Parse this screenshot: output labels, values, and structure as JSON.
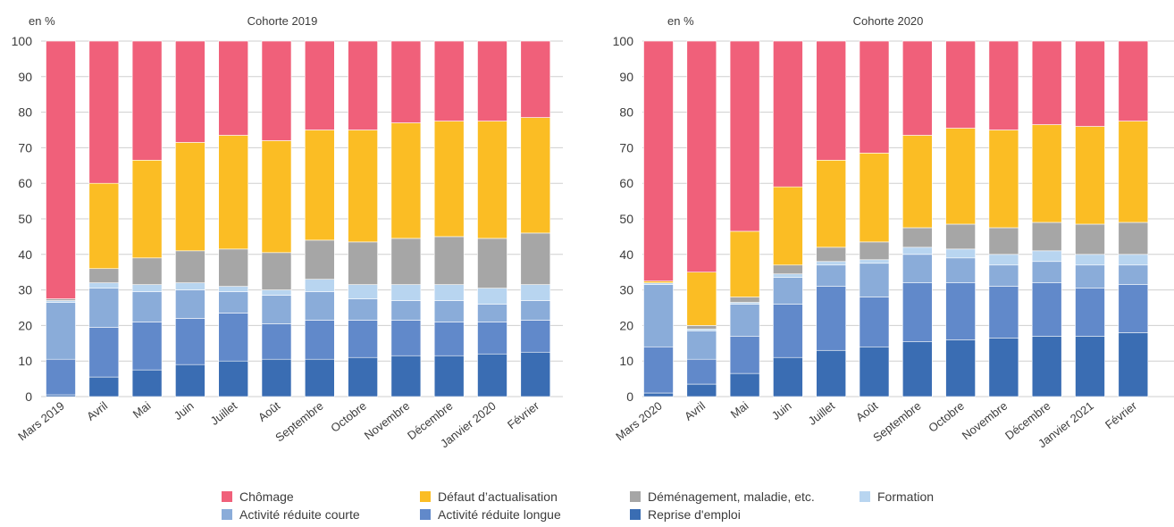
{
  "colors": {
    "chomage": "#f0607a",
    "defaut": "#fbbd24",
    "demenagement": "#a6a6a6",
    "formation": "#b8d5f0",
    "arc": "#8aacd9",
    "arl": "#6189ca",
    "reprise": "#3a6db3",
    "grid": "#cfcfcf"
  },
  "legend": {
    "row1": [
      {
        "key": "chomage",
        "label": "Chômage"
      },
      {
        "key": "defaut",
        "label": "Défaut d’actualisation"
      },
      {
        "key": "demenagement",
        "label": "Déménagement, maladie, etc."
      },
      {
        "key": "formation",
        "label": "Formation"
      }
    ],
    "row2": [
      {
        "key": "arc",
        "label": "Activité réduite courte"
      },
      {
        "key": "arl",
        "label": "Activité réduite longue"
      },
      {
        "key": "reprise",
        "label": "Reprise d'emploi"
      }
    ]
  },
  "chart_data": [
    {
      "type": "bar",
      "stacked": true,
      "title": "Cohorte 2019",
      "ylabel": "en %",
      "ylim": [
        0,
        100
      ],
      "yticks": [
        0,
        10,
        20,
        30,
        40,
        50,
        60,
        70,
        80,
        90,
        100
      ],
      "grid": true,
      "categories": [
        "Mars 2019",
        "Avril",
        "Mai",
        "Juin",
        "Juillet",
        "Août",
        "Septembre",
        "Octobre",
        "Novembre",
        "Décembre",
        "Janvier 2020",
        "Février"
      ],
      "series": [
        {
          "key": "reprise",
          "name": "Reprise d'emploi",
          "values": [
            0.5,
            5.5,
            7.5,
            9,
            10,
            10.5,
            10.5,
            11,
            11.5,
            11.5,
            12,
            12.5
          ]
        },
        {
          "key": "arl",
          "name": "Activité réduite longue",
          "values": [
            10,
            14,
            13.5,
            13,
            13.5,
            10,
            11,
            10.5,
            10,
            9.5,
            9,
            9
          ]
        },
        {
          "key": "arc",
          "name": "Activité réduite courte",
          "values": [
            16,
            11,
            8.5,
            8,
            6,
            8,
            8,
            6,
            5.5,
            6,
            5,
            5.5
          ]
        },
        {
          "key": "formation",
          "name": "Formation",
          "values": [
            0.5,
            1.5,
            2,
            2,
            1.5,
            1.5,
            3.5,
            4,
            4.5,
            4.5,
            4.5,
            4.5
          ]
        },
        {
          "key": "demenagement",
          "name": "Déménagement, maladie, etc.",
          "values": [
            0.5,
            4,
            7.5,
            9,
            10.5,
            10.5,
            11,
            12,
            13,
            13.5,
            14,
            14.5
          ]
        },
        {
          "key": "defaut",
          "name": "Défaut d’actualisation",
          "values": [
            0,
            24,
            27.5,
            30.5,
            32,
            31.5,
            31,
            31.5,
            32.5,
            32.5,
            33,
            32.5
          ]
        },
        {
          "key": "chomage",
          "name": "Chômage",
          "values": [
            72.5,
            40,
            33.5,
            28.5,
            26.5,
            28,
            25,
            25,
            23,
            22.5,
            22.5,
            21.5
          ]
        }
      ]
    },
    {
      "type": "bar",
      "stacked": true,
      "title": "Cohorte 2020",
      "ylabel": "en %",
      "ylim": [
        0,
        100
      ],
      "yticks": [
        0,
        10,
        20,
        30,
        40,
        50,
        60,
        70,
        80,
        90,
        100
      ],
      "grid": true,
      "categories": [
        "Mars 2020",
        "Avril",
        "Mai",
        "Juin",
        "Juillet",
        "Août",
        "Septembre",
        "Octobre",
        "Novembre",
        "Décembre",
        "Janvier 2021",
        "Février"
      ],
      "series": [
        {
          "key": "reprise",
          "name": "Reprise d'emploi",
          "values": [
            1,
            3.5,
            6.5,
            11,
            13,
            14,
            15.5,
            16,
            16.5,
            17,
            17,
            18
          ]
        },
        {
          "key": "arl",
          "name": "Activité réduite longue",
          "values": [
            13,
            7,
            10.5,
            15,
            18,
            14,
            16.5,
            16,
            14.5,
            15,
            13.5,
            13.5
          ]
        },
        {
          "key": "arc",
          "name": "Activité réduite courte",
          "values": [
            17.5,
            8,
            9,
            7.5,
            6,
            9.5,
            8,
            7,
            6,
            6,
            6.5,
            5.5
          ]
        },
        {
          "key": "formation",
          "name": "Formation",
          "values": [
            0.5,
            0.5,
            0.5,
            1,
            1,
            1,
            2,
            2.5,
            3,
            3,
            3,
            3
          ]
        },
        {
          "key": "demenagement",
          "name": "Déménagement, maladie, etc.",
          "values": [
            0,
            1,
            1.5,
            2.5,
            4,
            5,
            5.5,
            7,
            7.5,
            8,
            8.5,
            9
          ]
        },
        {
          "key": "defaut",
          "name": "Défaut d’actualisation",
          "values": [
            0.5,
            15,
            18.5,
            22,
            24.5,
            25,
            26,
            27,
            27.5,
            27.5,
            27.5,
            28.5
          ]
        },
        {
          "key": "chomage",
          "name": "Chômage",
          "values": [
            67.5,
            65,
            53.5,
            41,
            33.5,
            31.5,
            26.5,
            24.5,
            25,
            23.5,
            24,
            22.5
          ]
        }
      ]
    }
  ]
}
